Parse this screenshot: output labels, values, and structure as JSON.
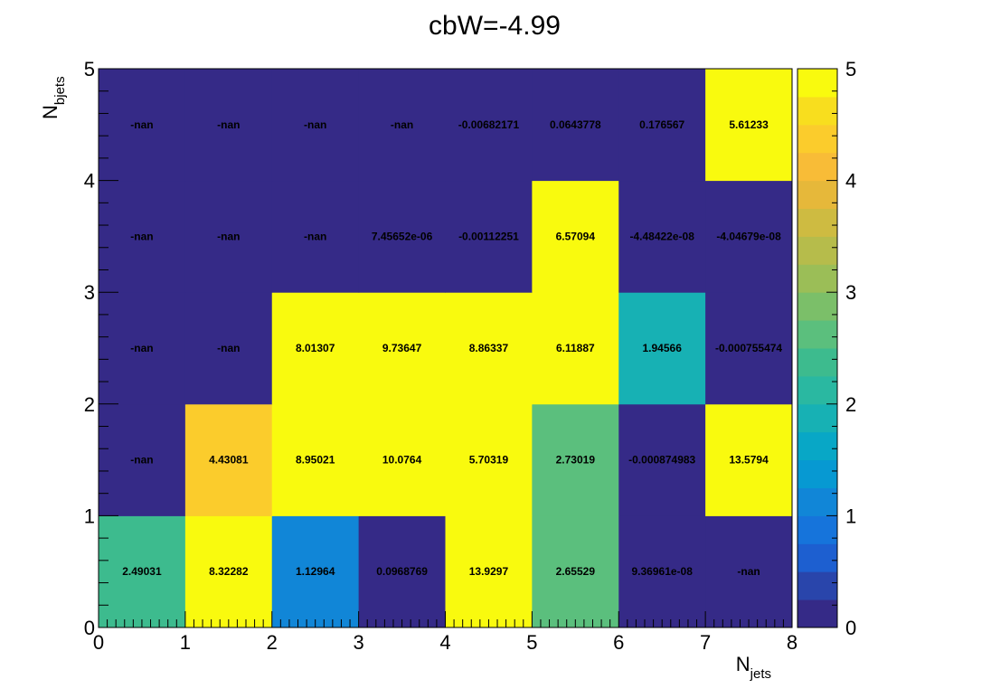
{
  "chart_data": {
    "type": "heatmap",
    "title": "cbW=-4.99",
    "xlabel": {
      "main": "N",
      "sub": "jets"
    },
    "ylabel": {
      "main": "N",
      "sub": "bjets"
    },
    "xlim": [
      0,
      8
    ],
    "ylim": [
      0,
      5
    ],
    "zlim": [
      0,
      5
    ],
    "x_ticks": [
      "0",
      "1",
      "2",
      "3",
      "4",
      "5",
      "6",
      "7",
      "8"
    ],
    "y_ticks": [
      "0",
      "1",
      "2",
      "3",
      "4",
      "5"
    ],
    "colorbar_ticks": [
      "0",
      "1",
      "2",
      "3",
      "4",
      "5"
    ],
    "rows": [
      {
        "y": 0,
        "labels": [
          "2.49031",
          "8.32282",
          "1.12964",
          "0.0968769",
          "13.9297",
          "2.65529",
          "9.36961e-08",
          "-nan"
        ]
      },
      {
        "y": 1,
        "labels": [
          "-nan",
          "4.43081",
          "8.95021",
          "10.0764",
          "5.70319",
          "2.73019",
          "-0.000874983",
          "13.5794"
        ]
      },
      {
        "y": 2,
        "labels": [
          "-nan",
          "-nan",
          "8.01307",
          "9.73647",
          "8.86337",
          "6.11887",
          "1.94566",
          "-0.000755474"
        ]
      },
      {
        "y": 3,
        "labels": [
          "-nan",
          "-nan",
          "-nan",
          "7.45652e-06",
          "-0.00112251",
          "6.57094",
          "-4.48422e-08",
          "-4.04679e-08"
        ]
      },
      {
        "y": 4,
        "labels": [
          "-nan",
          "-nan",
          "-nan",
          "-nan",
          "-0.00682171",
          "0.0643778",
          "0.176567",
          "5.61233"
        ]
      }
    ],
    "nan_color": "#352a87",
    "palette": [
      "#352a87",
      "#2945ab",
      "#1d5fd0",
      "#1674db",
      "#1186d7",
      "#0799d2",
      "#08a7c6",
      "#17b1b4",
      "#2ab8a1",
      "#3dbb8e",
      "#5bbf7d",
      "#7bbf69",
      "#9bbe57",
      "#b6bc4b",
      "#cebb41",
      "#e6b83a",
      "#f8bc37",
      "#fbcc2c",
      "#f8de1e",
      "#f9fa0e"
    ]
  }
}
